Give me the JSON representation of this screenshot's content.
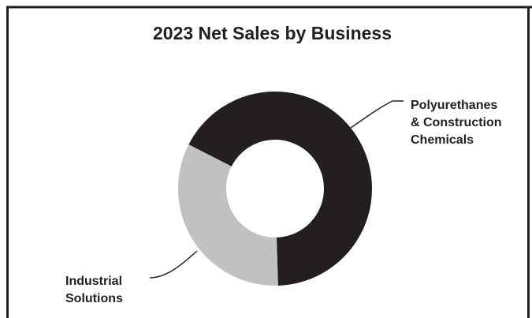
{
  "chart_data": {
    "type": "pie",
    "title": "2023 Net Sales by Business",
    "donut": true,
    "legend": "none",
    "slices": [
      {
        "label": "Polyurethanes\n& Construction\nChemicals",
        "value": 67,
        "color": "#231f20"
      },
      {
        "label": "Industrial\nSolutions",
        "value": 33,
        "color": "#c0c1c2"
      }
    ]
  },
  "colors": {
    "frame": "#231f20",
    "text": "#231f20",
    "background": "#ffffff"
  }
}
